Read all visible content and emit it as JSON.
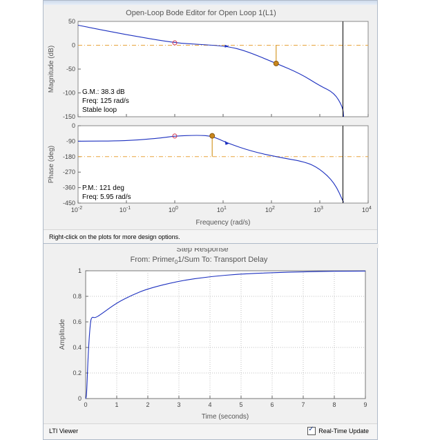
{
  "bode": {
    "window_title": "Open-Loop Bode Editor for Open Loop 1(L1)",
    "status_text": "Right-click on the plots for more design options.",
    "magnitude": {
      "ylabel": "Magnitude (dB)",
      "yticks": [
        "50",
        "0",
        "-50",
        "-100",
        "-150"
      ],
      "annotation": [
        "G.M.: 38.3 dB",
        "Freq: 125 rad/s",
        "Stable loop"
      ]
    },
    "phase": {
      "ylabel": "Phase (deg)",
      "yticks": [
        "0",
        "-90",
        "-180",
        "-270",
        "-360",
        "-450"
      ],
      "annotation": [
        "P.M.: 121 deg",
        "Freq: 5.95 rad/s"
      ]
    },
    "xticks": [
      "10",
      "10",
      "10",
      "10",
      "10",
      "10",
      "10"
    ],
    "xtick_exponents": [
      "-2",
      "-1",
      "0",
      "1",
      "2",
      "3",
      "4"
    ],
    "xlabel": "Frequency (rad/s)"
  },
  "step": {
    "title_cut": "Step Response",
    "subtitle": "From: Primer",
    "subtitle_sub": "0",
    "subtitle_rest": "1/Sum  To: Transport Delay",
    "ylabel": "Amplitude",
    "xlabel": "Time (seconds)",
    "xticks": [
      "0",
      "1",
      "2",
      "3",
      "4",
      "5",
      "6",
      "7",
      "8",
      "9"
    ],
    "yticks": [
      "1",
      "0.8",
      "0.6",
      "0.4",
      "0.2",
      "0"
    ],
    "status_text": "LTI Viewer",
    "realtime_label": "Real-Time Update"
  },
  "chart_data": [
    {
      "type": "line",
      "panel": "magnitude",
      "xscale": "log",
      "xlim": [
        0.01,
        10000
      ],
      "ylim": [
        -150,
        50
      ],
      "ylabel": "Magnitude (dB)",
      "x": [
        0.01,
        0.1,
        1,
        3,
        12,
        30,
        125,
        400,
        1000,
        2000,
        3000,
        3100
      ],
      "y": [
        42,
        22,
        5,
        2,
        -2,
        -12,
        -38,
        -60,
        -85,
        -100,
        -130,
        -150
      ],
      "gain_margin_db": 38.3,
      "gain_margin_freq": 125,
      "grid": false
    },
    {
      "type": "line",
      "panel": "phase",
      "xscale": "log",
      "xlim": [
        0.01,
        10000
      ],
      "ylim": [
        -450,
        0
      ],
      "ylabel": "Phase (deg)",
      "x": [
        0.01,
        0.1,
        0.5,
        1,
        3,
        5.95,
        12,
        40,
        150,
        500,
        1000,
        2000,
        3100
      ],
      "y": [
        -90,
        -88,
        -72,
        -60,
        -55,
        -60,
        -100,
        -150,
        -185,
        -210,
        -250,
        -330,
        -445
      ],
      "phase_margin_deg": 121,
      "phase_margin_freq": 5.95,
      "grid": false
    },
    {
      "type": "line",
      "panel": "step",
      "xlim": [
        0,
        9
      ],
      "ylim": [
        0,
        1
      ],
      "xlabel": "Time (seconds)",
      "ylabel": "Amplitude",
      "x": [
        0,
        0.03,
        0.08,
        0.15,
        0.2,
        0.3,
        0.5,
        1,
        1.5,
        2,
        3,
        4,
        5,
        6,
        7,
        8,
        9
      ],
      "y": [
        0,
        0.02,
        0.35,
        0.6,
        0.64,
        0.63,
        0.66,
        0.75,
        0.81,
        0.86,
        0.92,
        0.955,
        0.975,
        0.985,
        0.992,
        0.996,
        0.998
      ],
      "grid": true
    }
  ]
}
